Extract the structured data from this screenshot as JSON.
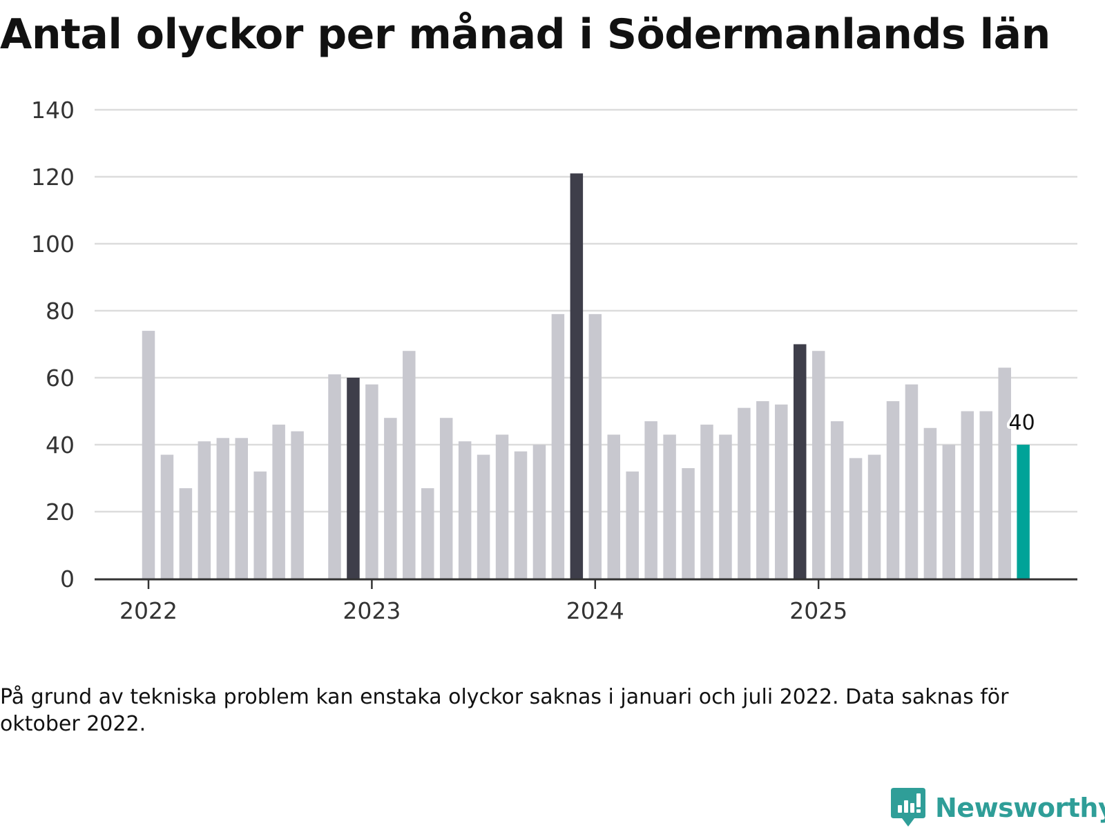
{
  "title": "Antal olyckor per månad i Södermanlands län",
  "footnote": "På grund av tekniska problem kan enstaka olyckor saknas i januari och juli 2022. Data saknas för oktober 2022.",
  "brand": {
    "name": "Newsworthy",
    "icon": "newsworthy-logo-icon",
    "color": "#2f9e98"
  },
  "colors": {
    "bar_default": "#c8c8cf",
    "bar_december": "#3e3e4a",
    "bar_latest": "#00a398",
    "gridline": "#dcdcdc",
    "axis": "#333333"
  },
  "chart_data": {
    "type": "bar",
    "title": "Antal olyckor per månad i Södermanlands län",
    "xlabel": "",
    "ylabel": "",
    "ylim": [
      0,
      140
    ],
    "yticks": [
      0,
      20,
      40,
      60,
      80,
      100,
      120,
      140
    ],
    "xtick_labels": [
      "2022",
      "2023",
      "2024",
      "2025"
    ],
    "grid": true,
    "months_start": "2022-01",
    "values": [
      74,
      37,
      27,
      41,
      42,
      42,
      32,
      46,
      44,
      null,
      61,
      60,
      58,
      48,
      68,
      27,
      48,
      41,
      37,
      43,
      38,
      40,
      79,
      121,
      79,
      43,
      32,
      47,
      43,
      33,
      46,
      43,
      51,
      53,
      52,
      70,
      68,
      47,
      36,
      37,
      53,
      58,
      45,
      40,
      50,
      50,
      63,
      40
    ],
    "highlighted_months": "december",
    "annotation": {
      "label": "40",
      "target": "last bar"
    }
  }
}
